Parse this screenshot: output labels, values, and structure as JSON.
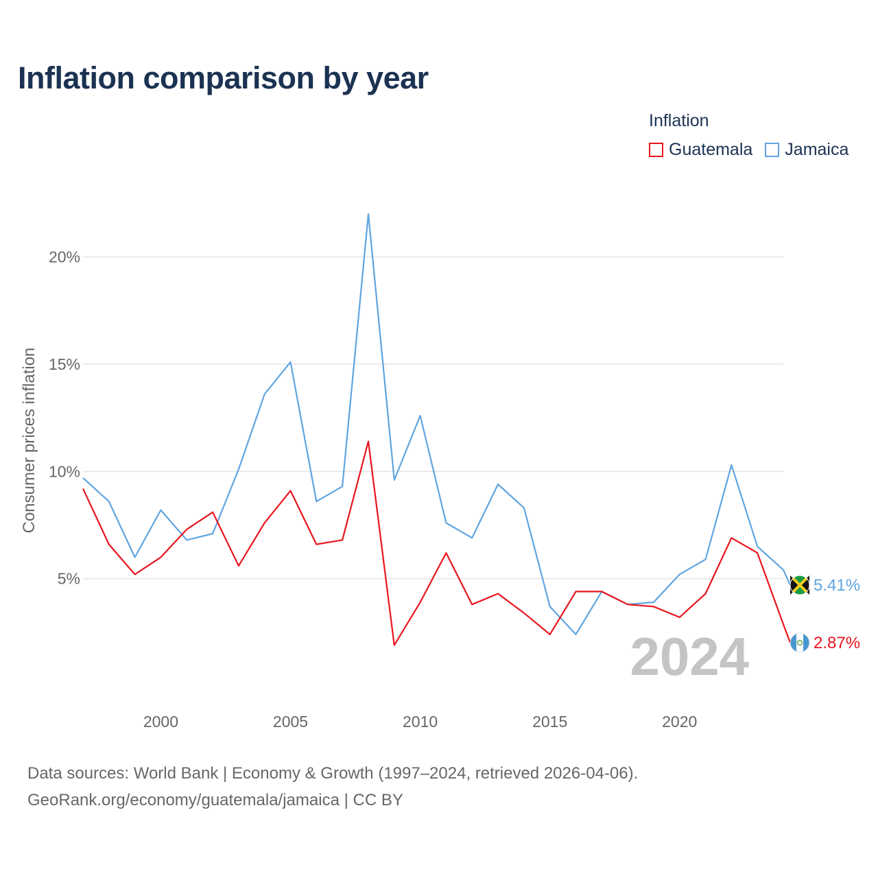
{
  "chart_data": {
    "type": "line",
    "title": "Inflation comparison by year",
    "legend_title": "Inflation",
    "ylabel": "Consumer prices inflation",
    "xlabel": "",
    "x": [
      1997,
      1998,
      1999,
      2000,
      2001,
      2002,
      2003,
      2004,
      2005,
      2006,
      2007,
      2008,
      2009,
      2010,
      2011,
      2012,
      2013,
      2014,
      2015,
      2016,
      2017,
      2018,
      2019,
      2020,
      2021,
      2022,
      2023,
      2024
    ],
    "series": [
      {
        "name": "Guatemala",
        "color": "#e8141c",
        "values": [
          9.2,
          6.6,
          5.2,
          6.0,
          7.3,
          8.1,
          5.6,
          7.6,
          9.1,
          6.6,
          6.8,
          11.4,
          1.9,
          3.9,
          6.2,
          3.8,
          4.3,
          3.4,
          2.4,
          4.4,
          4.4,
          3.8,
          3.7,
          3.2,
          4.3,
          6.9,
          6.2,
          2.87
        ],
        "end_label": "2.87%",
        "flag_icon": "guatemala-flag-icon"
      },
      {
        "name": "Jamaica",
        "color": "#5fa4e0",
        "values": [
          9.7,
          8.6,
          6.0,
          8.2,
          6.8,
          7.1,
          10.1,
          13.6,
          15.1,
          8.6,
          9.3,
          22.0,
          9.6,
          12.6,
          7.6,
          6.9,
          9.4,
          8.3,
          3.7,
          2.4,
          4.4,
          3.8,
          3.9,
          5.2,
          5.9,
          10.3,
          6.5,
          5.41
        ],
        "end_label": "5.41%",
        "flag_icon": "jamaica-flag-icon"
      }
    ],
    "xticks": [
      2000,
      2005,
      2010,
      2015,
      2020
    ],
    "xtick_labels": [
      "2000",
      "2005",
      "2010",
      "2015",
      "2020"
    ],
    "yticks": [
      5,
      10,
      15,
      20
    ],
    "ytick_labels": [
      "5%",
      "10%",
      "15%",
      "20%"
    ],
    "xlim": [
      1997,
      2024
    ],
    "ylim": [
      0,
      22
    ],
    "grid": true,
    "legend_position": "top-right",
    "year_watermark": "2024"
  },
  "footer": {
    "line1": "Data sources: World Bank | Economy & Growth (1997–2024, retrieved 2026-04-06).",
    "line2": "GeoRank.org/economy/guatemala/jamaica | CC BY"
  }
}
